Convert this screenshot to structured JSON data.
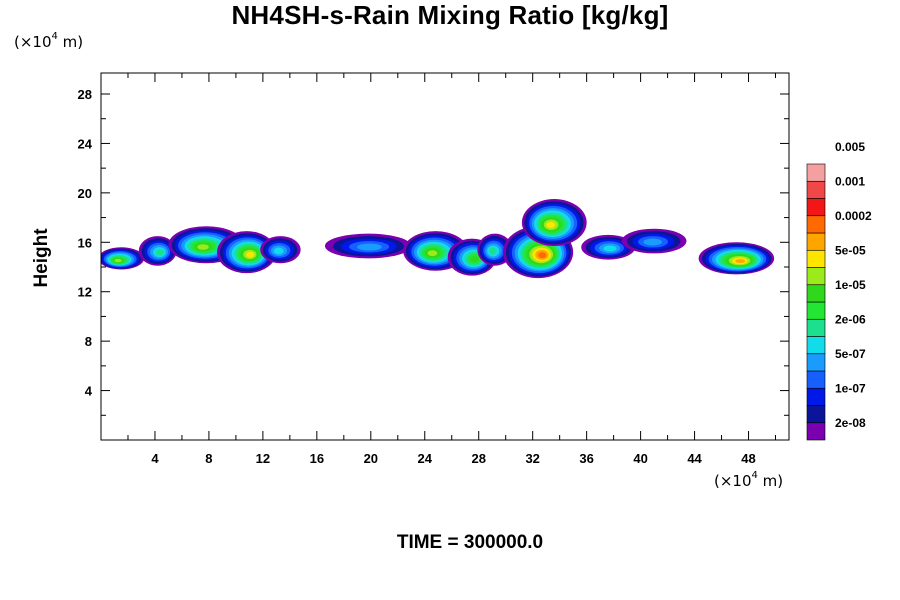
{
  "chart_data": {
    "type": "contour",
    "title": "NH4SH-s-Rain Mixing Ratio [kg/kg]",
    "ylabel": "Height",
    "x_unit": {
      "prefix": "(×10",
      "exp": "4",
      "suffix": " m)"
    },
    "y_unit": {
      "prefix": "(×10",
      "exp": "4",
      "suffix": " m)"
    },
    "xlim": [
      0,
      51
    ],
    "ylim": [
      0,
      29.7
    ],
    "x_ticks": [
      4,
      8,
      12,
      16,
      20,
      24,
      28,
      32,
      36,
      40,
      44,
      48
    ],
    "y_ticks": [
      4,
      8,
      12,
      16,
      20,
      24,
      28
    ],
    "x_tick_labels": [
      "4",
      "8",
      "12",
      "16",
      "20",
      "24",
      "28",
      "32",
      "36",
      "40",
      "44",
      "48"
    ],
    "y_tick_labels": [
      "4",
      "8",
      "12",
      "16",
      "20",
      "24",
      "28"
    ],
    "levels": [
      {
        "color": "#7B00B0"
      },
      {
        "color": "#0C1599"
      },
      {
        "color": "#0019E8"
      },
      {
        "color": "#1560FF"
      },
      {
        "color": "#1A9CFF"
      },
      {
        "color": "#12DCEA"
      },
      {
        "color": "#1CE08E"
      },
      {
        "color": "#22E633"
      },
      {
        "color": "#2FD81C"
      },
      {
        "color": "#9BEA1C"
      },
      {
        "color": "#FFE400"
      },
      {
        "color": "#FFA500"
      },
      {
        "color": "#FF6A00"
      },
      {
        "color": "#F21616"
      },
      {
        "color": "#F04848"
      },
      {
        "color": "#F4A0A0"
      }
    ],
    "colorbar_labels": [
      "2e-08",
      "1e-07",
      "5e-07",
      "2e-06",
      "1e-05",
      "5e-05",
      "0.0002",
      "0.001",
      "0.005"
    ],
    "cells": [
      {
        "x": 1.5,
        "y": 14.7,
        "rx": 1.7,
        "ry": 0.9,
        "peak": 9
      },
      {
        "x": 4.2,
        "y": 15.3,
        "rx": 1.4,
        "ry": 1.2,
        "peak": 6
      },
      {
        "x": 7.8,
        "y": 15.8,
        "rx": 2.8,
        "ry": 1.5,
        "peak": 9
      },
      {
        "x": 10.8,
        "y": 15.2,
        "rx": 2.2,
        "ry": 1.7,
        "peak": 10
      },
      {
        "x": 13.3,
        "y": 15.4,
        "rx": 1.5,
        "ry": 1.1,
        "peak": 5
      },
      {
        "x": 19.8,
        "y": 15.7,
        "rx": 3.2,
        "ry": 1.0,
        "peak": 4
      },
      {
        "x": 24.8,
        "y": 15.3,
        "rx": 2.4,
        "ry": 1.6,
        "peak": 9
      },
      {
        "x": 27.5,
        "y": 14.8,
        "rx": 1.8,
        "ry": 1.5,
        "peak": 8
      },
      {
        "x": 29.2,
        "y": 15.4,
        "rx": 1.3,
        "ry": 1.3,
        "peak": 6
      },
      {
        "x": 32.4,
        "y": 15.2,
        "rx": 2.6,
        "ry": 2.1,
        "peak": 12
      },
      {
        "x": 33.6,
        "y": 17.6,
        "rx": 2.4,
        "ry": 1.9,
        "peak": 10
      },
      {
        "x": 37.6,
        "y": 15.6,
        "rx": 2.0,
        "ry": 1.0,
        "peak": 5
      },
      {
        "x": 41.0,
        "y": 16.1,
        "rx": 2.4,
        "ry": 1.0,
        "peak": 4
      },
      {
        "x": 47.1,
        "y": 14.7,
        "rx": 2.8,
        "ry": 1.3,
        "peak": 11
      }
    ],
    "time_label": "TIME = 300000.0"
  }
}
